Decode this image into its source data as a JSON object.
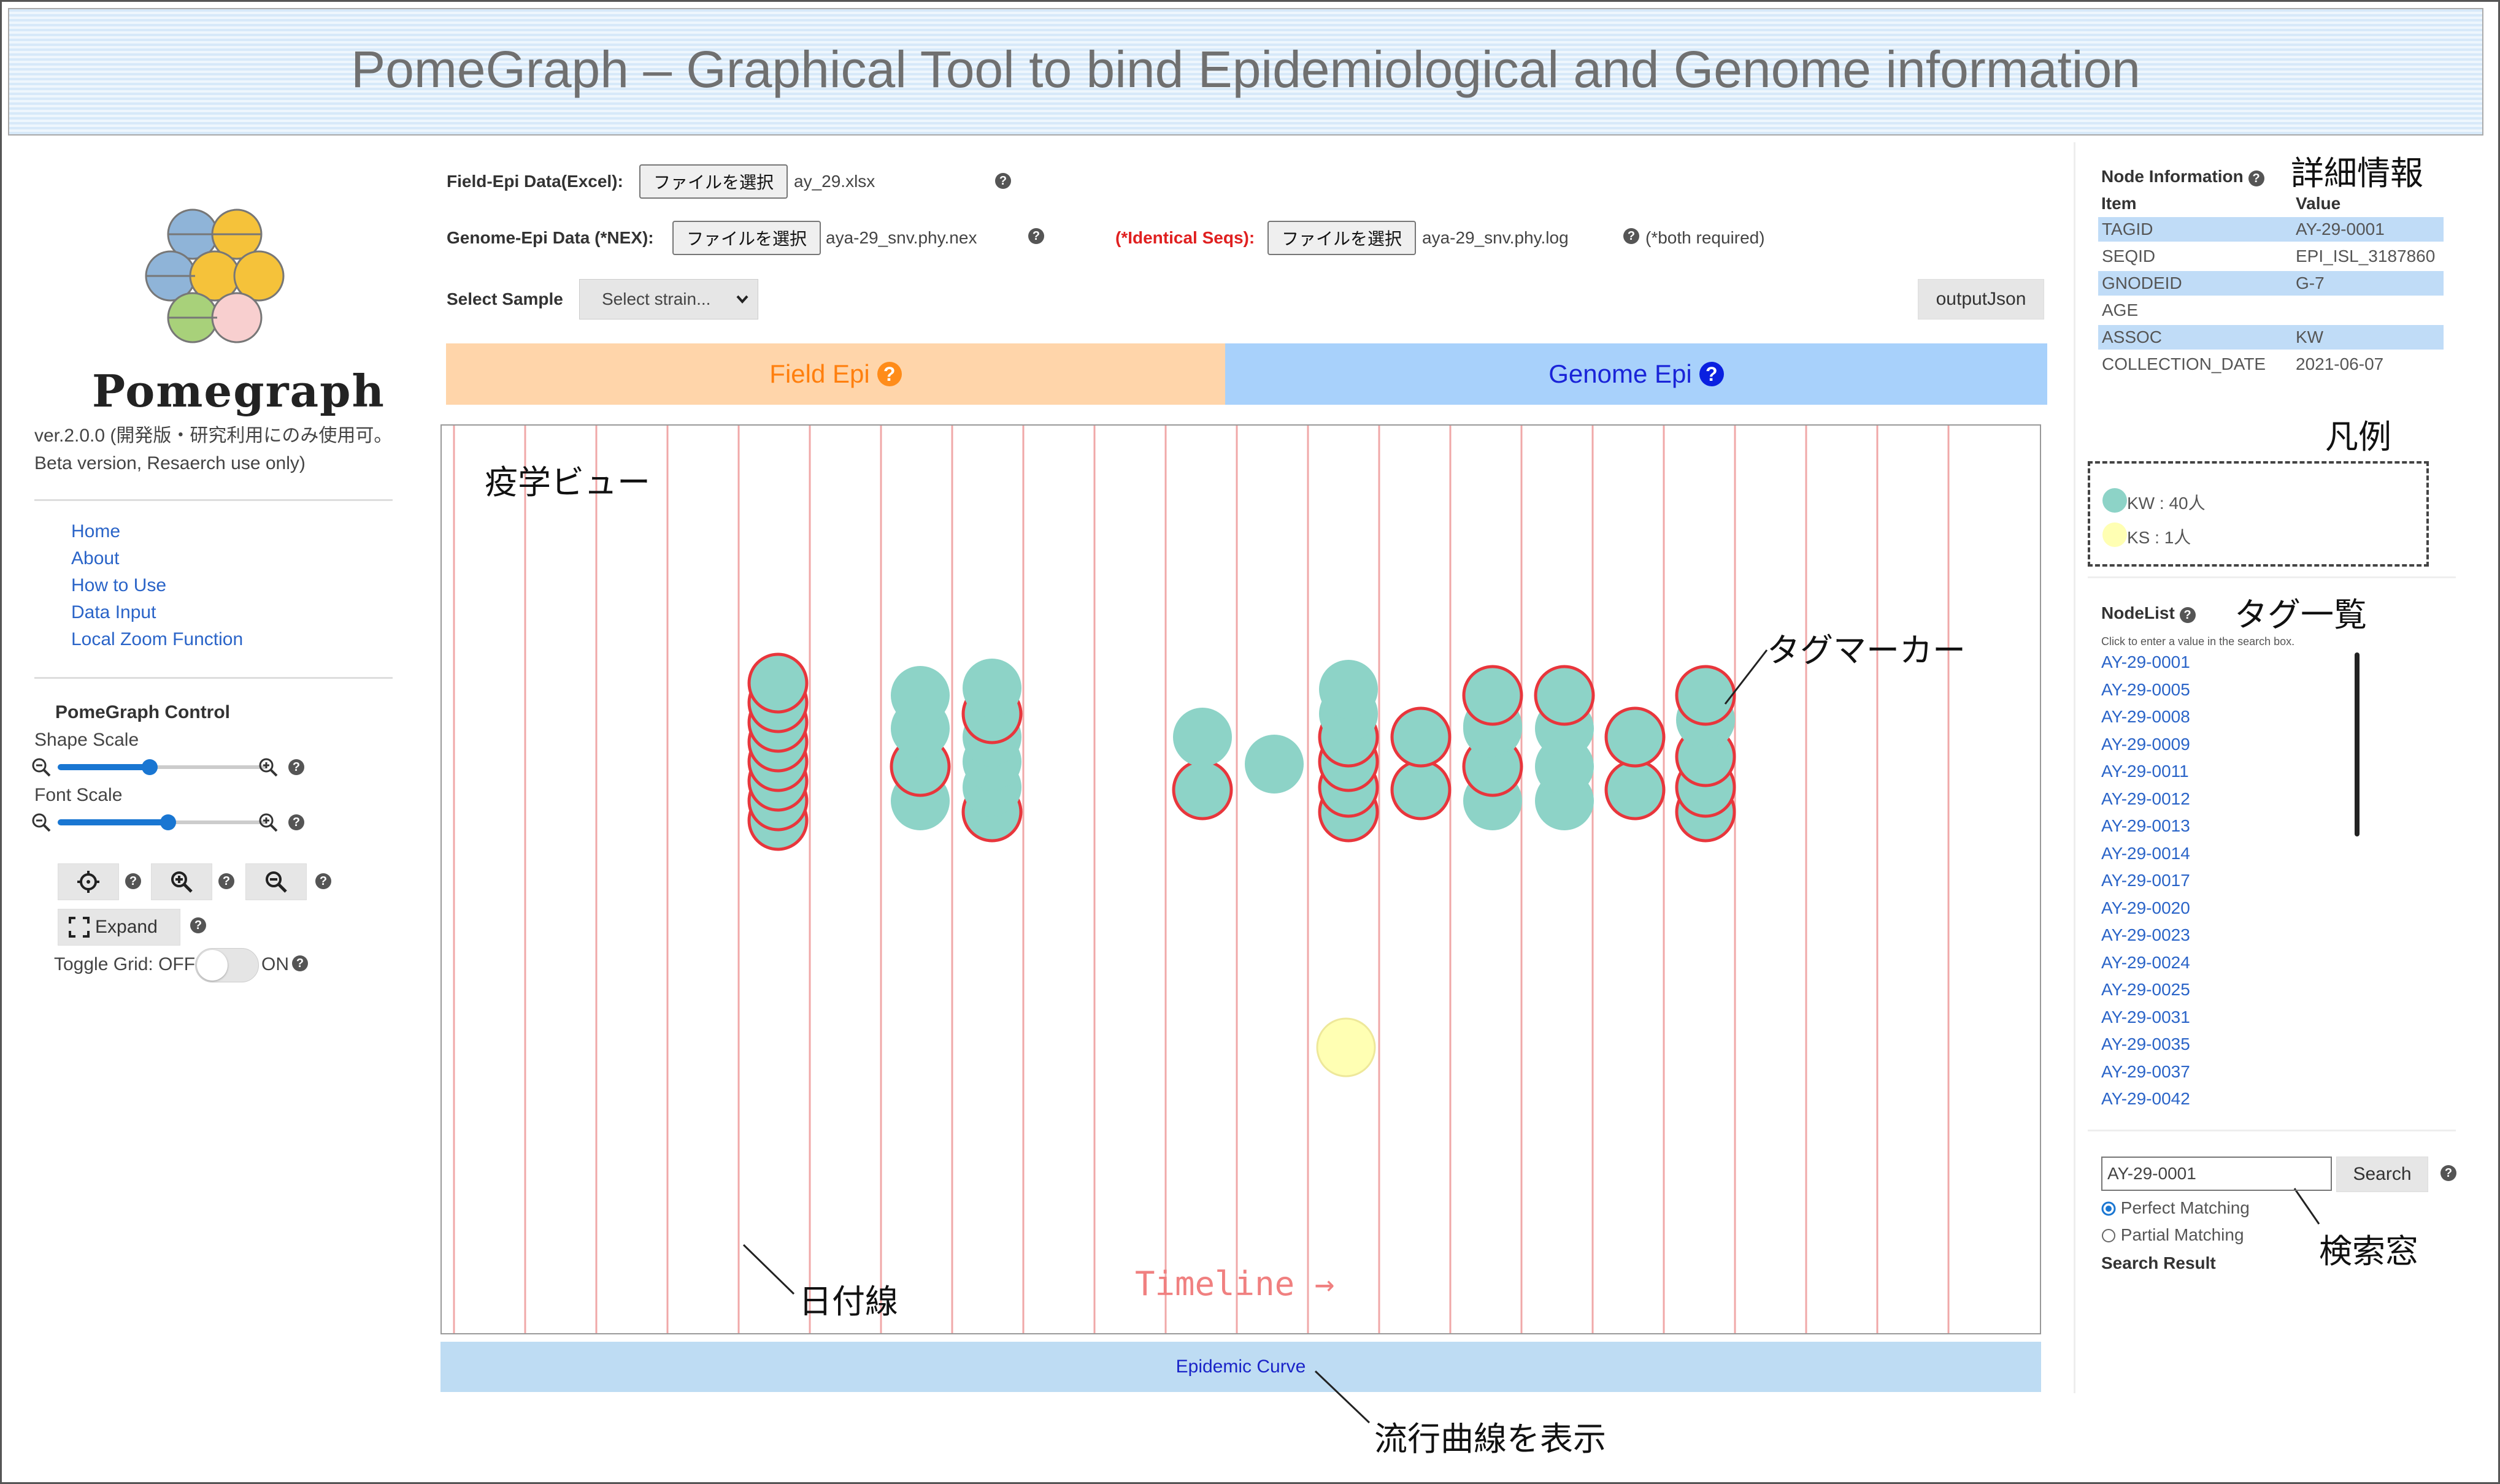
{
  "header": {
    "title": "PomeGraph – Graphical Tool to bind Epidemiological and Genome information"
  },
  "sidebar": {
    "logo_text": "Pomegraph",
    "version_line1": "ver.2.0.0 (開発版・研究利用にのみ使用可。",
    "version_line2": "Beta version, Resaerch use only)",
    "nav": [
      "Home",
      "About",
      "How to Use",
      "Data Input",
      "Local Zoom Function"
    ],
    "control_title": "PomeGraph Control",
    "shape_scale_label": "Shape Scale",
    "shape_scale_value": 0.5,
    "font_scale_label": "Font Scale",
    "font_scale_value": 0.6,
    "expand_label": "Expand",
    "toggle_grid_label": "Toggle Grid:",
    "toggle_off": "OFF",
    "toggle_on": "ON"
  },
  "form": {
    "field_epi_label": "Field-Epi Data(Excel):",
    "file_button": "ファイルを選択",
    "field_epi_file": "ay_29.xlsx",
    "genome_epi_label": "Genome-Epi Data (*NEX):",
    "genome_epi_file": "aya-29_snv.phy.nex",
    "identical_label": "(*Identical Seqs):",
    "identical_file": "aya-29_snv.phy.log",
    "both_required": "(*both required)",
    "select_sample_label": "Select Sample",
    "select_placeholder": "Select strain...",
    "output_button": "outputJson"
  },
  "tabs": {
    "field_epi": "Field Epi",
    "genome_epi": "Genome Epi"
  },
  "canvas": {
    "timeline_label": "Timeline →"
  },
  "epidemic_curve_button": "Epidemic Curve",
  "annotations": {
    "epi_view": "疫学ビュー",
    "tag_marker": "タグマーカー",
    "date_line": "日付線",
    "show_epi_curve": "流行曲線を表示",
    "details": "詳細情報",
    "legend": "凡例",
    "tag_list": "タグ一覧",
    "search_window": "検索窓"
  },
  "node_info": {
    "title": "Node Information",
    "item_header": "Item",
    "value_header": "Value",
    "rows": [
      {
        "item": "TAGID",
        "value": "AY-29-0001"
      },
      {
        "item": "SEQID",
        "value": "EPI_ISL_3187860"
      },
      {
        "item": "GNODEID",
        "value": "G-7"
      },
      {
        "item": "AGE",
        "value": ""
      },
      {
        "item": "ASSOC",
        "value": "KW"
      },
      {
        "item": "COLLECTION_DATE",
        "value": "2021-06-07"
      }
    ]
  },
  "legend": {
    "items": [
      {
        "label": "KW : 40人",
        "color": "#8dd3c7"
      },
      {
        "label": "KS : 1人",
        "color": "#ffffb3"
      }
    ]
  },
  "node_list": {
    "title": "NodeList",
    "hint": "Click to enter a value in the search box.",
    "items": [
      "AY-29-0001",
      "AY-29-0005",
      "AY-29-0008",
      "AY-29-0009",
      "AY-29-0011",
      "AY-29-0012",
      "AY-29-0013",
      "AY-29-0014",
      "AY-29-0017",
      "AY-29-0020",
      "AY-29-0023",
      "AY-29-0024",
      "AY-29-0025",
      "AY-29-0031",
      "AY-29-0035",
      "AY-29-0037",
      "AY-29-0042"
    ]
  },
  "search": {
    "value": "AY-29-0001",
    "button": "Search",
    "perfect": "Perfect Matching",
    "partial": "Partial Matching",
    "result_label": "Search Result"
  },
  "colors": {
    "marker_fill": "#8dd3c7",
    "marker_highlight": "#e8363c",
    "ks_fill": "#ffffb3",
    "date_line": "#f0a8a8"
  }
}
